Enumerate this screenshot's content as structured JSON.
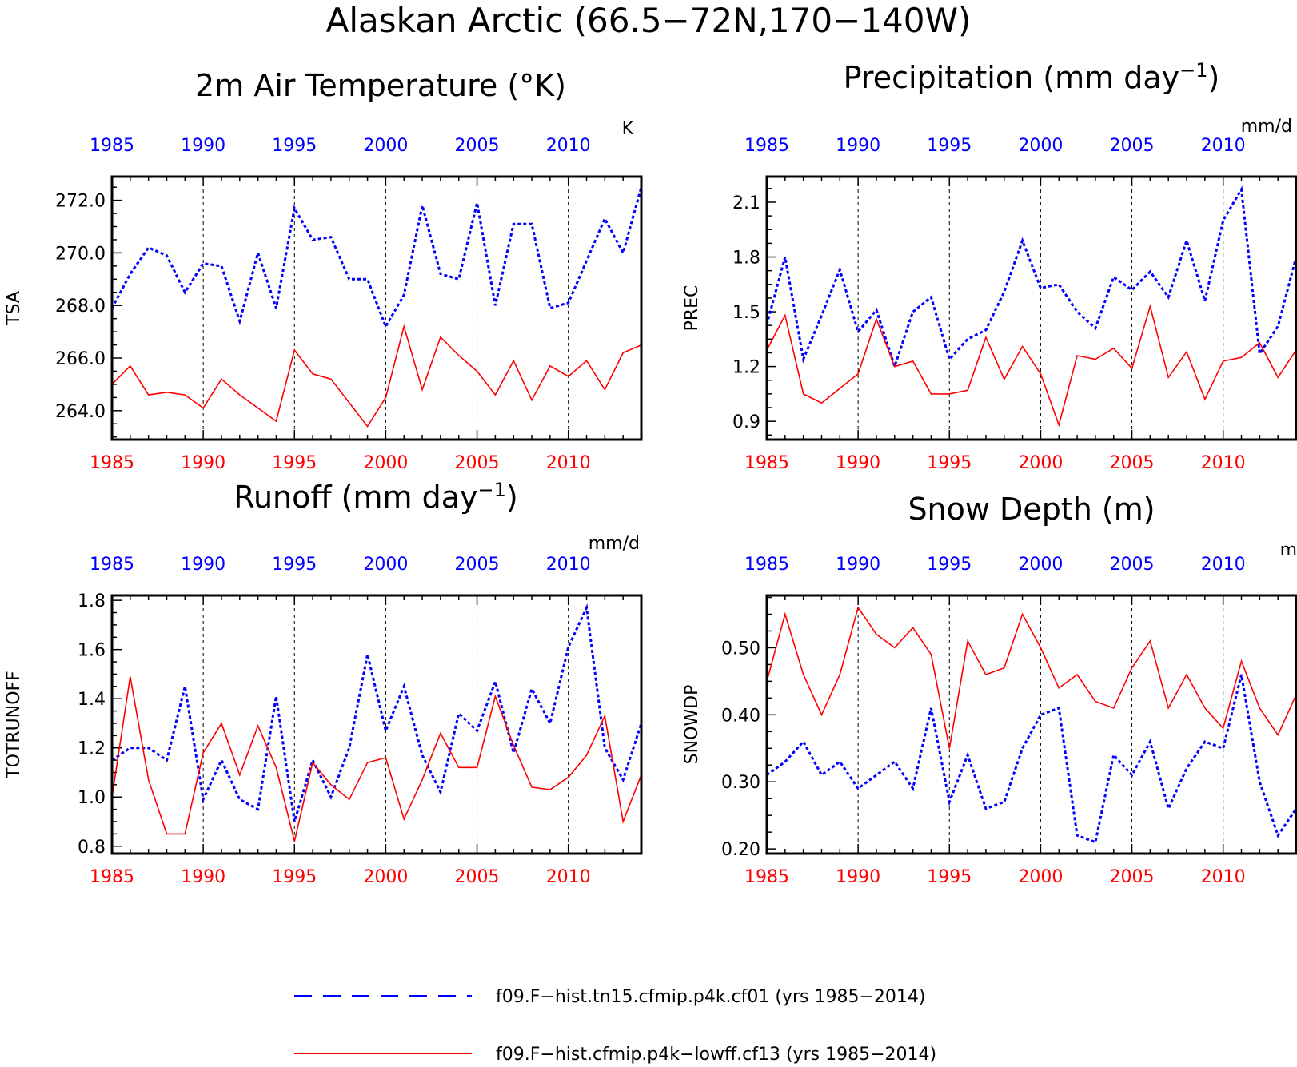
{
  "figure": {
    "title": "Alaskan Arctic (66.5−72N,170−140W)",
    "legend": [
      {
        "label": "f09.F−hist.tn15.cfmip.p4k.cf01 (yrs 1985−2014)",
        "color": "#0000ff",
        "style": "dashed"
      },
      {
        "label": "f09.F−hist.cfmip.p4k−lowff.cf13 (yrs 1985−2014)",
        "color": "#ff0000",
        "style": "solid"
      }
    ]
  },
  "chart_data": [
    {
      "type": "line",
      "title": "2m Air Temperature (°K)",
      "ylabel": "TSA",
      "units": "K",
      "xlim": [
        1985,
        2014
      ],
      "ylim": [
        262.9,
        272.9
      ],
      "yticks": [
        "264.0",
        "266.0",
        "268.0",
        "270.0",
        "272.0"
      ],
      "x": [
        1985,
        1986,
        1987,
        1988,
        1989,
        1990,
        1991,
        1992,
        1993,
        1994,
        1995,
        1996,
        1997,
        1998,
        1999,
        2000,
        2001,
        2002,
        2003,
        2004,
        2005,
        2006,
        2007,
        2008,
        2009,
        2010,
        2011,
        2012,
        2013,
        2014
      ],
      "series": [
        {
          "values": [
            267.9,
            269.2,
            270.2,
            269.9,
            268.5,
            269.6,
            269.5,
            267.4,
            270.0,
            267.9,
            271.7,
            270.5,
            270.6,
            269.0,
            269.0,
            267.2,
            268.4,
            271.8,
            269.2,
            269.0,
            271.9,
            268.0,
            271.1,
            271.1,
            267.9,
            268.1,
            269.7,
            271.3,
            270.0,
            272.5
          ],
          "color": "#0000ff",
          "style": "dashed"
        },
        {
          "values": [
            265.0,
            265.7,
            264.6,
            264.7,
            264.6,
            264.1,
            265.2,
            264.6,
            264.1,
            263.6,
            266.3,
            265.4,
            265.2,
            264.3,
            263.4,
            264.5,
            267.2,
            264.8,
            266.8,
            266.1,
            265.5,
            264.6,
            265.9,
            264.4,
            265.7,
            265.3,
            265.9,
            264.8,
            266.2,
            266.5
          ],
          "color": "#ff0000",
          "style": "solid"
        }
      ]
    },
    {
      "type": "line",
      "title": "Precipitation (mm day",
      "title_sup": "−1",
      "title_end": ")",
      "ylabel": "PREC",
      "units": "mm/d",
      "xlim": [
        1985,
        2014
      ],
      "ylim": [
        0.8,
        2.24
      ],
      "yticks": [
        "0.9",
        "1.2",
        "1.5",
        "1.8",
        "2.1"
      ],
      "x": [
        1985,
        1986,
        1987,
        1988,
        1989,
        1990,
        1991,
        1992,
        1993,
        1994,
        1995,
        1996,
        1997,
        1998,
        1999,
        2000,
        2001,
        2002,
        2003,
        2004,
        2005,
        2006,
        2007,
        2008,
        2009,
        2010,
        2011,
        2012,
        2013,
        2014
      ],
      "series": [
        {
          "values": [
            1.43,
            1.8,
            1.24,
            1.48,
            1.73,
            1.39,
            1.51,
            1.2,
            1.5,
            1.58,
            1.24,
            1.35,
            1.4,
            1.61,
            1.89,
            1.63,
            1.65,
            1.5,
            1.41,
            1.69,
            1.62,
            1.72,
            1.58,
            1.89,
            1.56,
            2.0,
            2.17,
            1.27,
            1.42,
            1.8
          ],
          "color": "#0000ff",
          "style": "dashed"
        },
        {
          "values": [
            1.29,
            1.48,
            1.05,
            1.0,
            1.08,
            1.16,
            1.46,
            1.2,
            1.23,
            1.05,
            1.05,
            1.07,
            1.36,
            1.13,
            1.31,
            1.16,
            0.88,
            1.26,
            1.24,
            1.3,
            1.19,
            1.53,
            1.14,
            1.28,
            1.02,
            1.23,
            1.25,
            1.33,
            1.14,
            1.29
          ],
          "color": "#ff0000",
          "style": "solid"
        }
      ]
    },
    {
      "type": "line",
      "title": "Runoff (mm day",
      "title_sup": "−1",
      "title_end": ")",
      "ylabel": "TOTRUNOFF",
      "units": "mm/d",
      "xlim": [
        1985,
        2014
      ],
      "ylim": [
        0.77,
        1.82
      ],
      "yticks": [
        "0.8",
        "1.0",
        "1.2",
        "1.4",
        "1.6",
        "1.8"
      ],
      "x": [
        1985,
        1986,
        1987,
        1988,
        1989,
        1990,
        1991,
        1992,
        1993,
        1994,
        1995,
        1996,
        1997,
        1998,
        1999,
        2000,
        2001,
        2002,
        2003,
        2004,
        2005,
        2006,
        2007,
        2008,
        2009,
        2010,
        2011,
        2012,
        2013,
        2014
      ],
      "series": [
        {
          "values": [
            1.15,
            1.2,
            1.2,
            1.15,
            1.45,
            0.99,
            1.15,
            0.99,
            0.95,
            1.41,
            0.9,
            1.15,
            1.0,
            1.2,
            1.58,
            1.27,
            1.45,
            1.17,
            1.02,
            1.34,
            1.27,
            1.47,
            1.18,
            1.44,
            1.3,
            1.61,
            1.77,
            1.2,
            1.07,
            1.3
          ],
          "color": "#0000ff",
          "style": "dashed"
        },
        {
          "values": [
            1.0,
            1.49,
            1.07,
            0.85,
            0.85,
            1.18,
            1.3,
            1.09,
            1.29,
            1.12,
            0.82,
            1.14,
            1.05,
            0.99,
            1.14,
            1.16,
            0.91,
            1.07,
            1.26,
            1.12,
            1.12,
            1.41,
            1.21,
            1.04,
            1.03,
            1.08,
            1.17,
            1.33,
            0.9,
            1.09
          ],
          "color": "#ff0000",
          "style": "solid"
        }
      ]
    },
    {
      "type": "line",
      "title": "Snow Depth (m)",
      "ylabel": "SNOWDP",
      "units": "m",
      "xlim": [
        1985,
        2014
      ],
      "ylim": [
        0.193,
        0.578
      ],
      "yticks": [
        "0.20",
        "0.30",
        "0.40",
        "0.50"
      ],
      "x": [
        1985,
        1986,
        1987,
        1988,
        1989,
        1990,
        1991,
        1992,
        1993,
        1994,
        1995,
        1996,
        1997,
        1998,
        1999,
        2000,
        2001,
        2002,
        2003,
        2004,
        2005,
        2006,
        2007,
        2008,
        2009,
        2010,
        2011,
        2012,
        2013,
        2014
      ],
      "series": [
        {
          "values": [
            0.31,
            0.33,
            0.36,
            0.31,
            0.33,
            0.29,
            0.31,
            0.33,
            0.29,
            0.41,
            0.27,
            0.34,
            0.26,
            0.27,
            0.35,
            0.4,
            0.41,
            0.22,
            0.21,
            0.34,
            0.31,
            0.36,
            0.26,
            0.32,
            0.36,
            0.35,
            0.46,
            0.3,
            0.22,
            0.26
          ],
          "color": "#0000ff",
          "style": "dashed"
        },
        {
          "values": [
            0.45,
            0.55,
            0.46,
            0.4,
            0.46,
            0.56,
            0.52,
            0.5,
            0.53,
            0.49,
            0.35,
            0.51,
            0.46,
            0.47,
            0.55,
            0.5,
            0.44,
            0.46,
            0.42,
            0.41,
            0.47,
            0.51,
            0.41,
            0.46,
            0.41,
            0.38,
            0.48,
            0.41,
            0.37,
            0.43
          ],
          "color": "#ff0000",
          "style": "solid"
        }
      ]
    }
  ]
}
